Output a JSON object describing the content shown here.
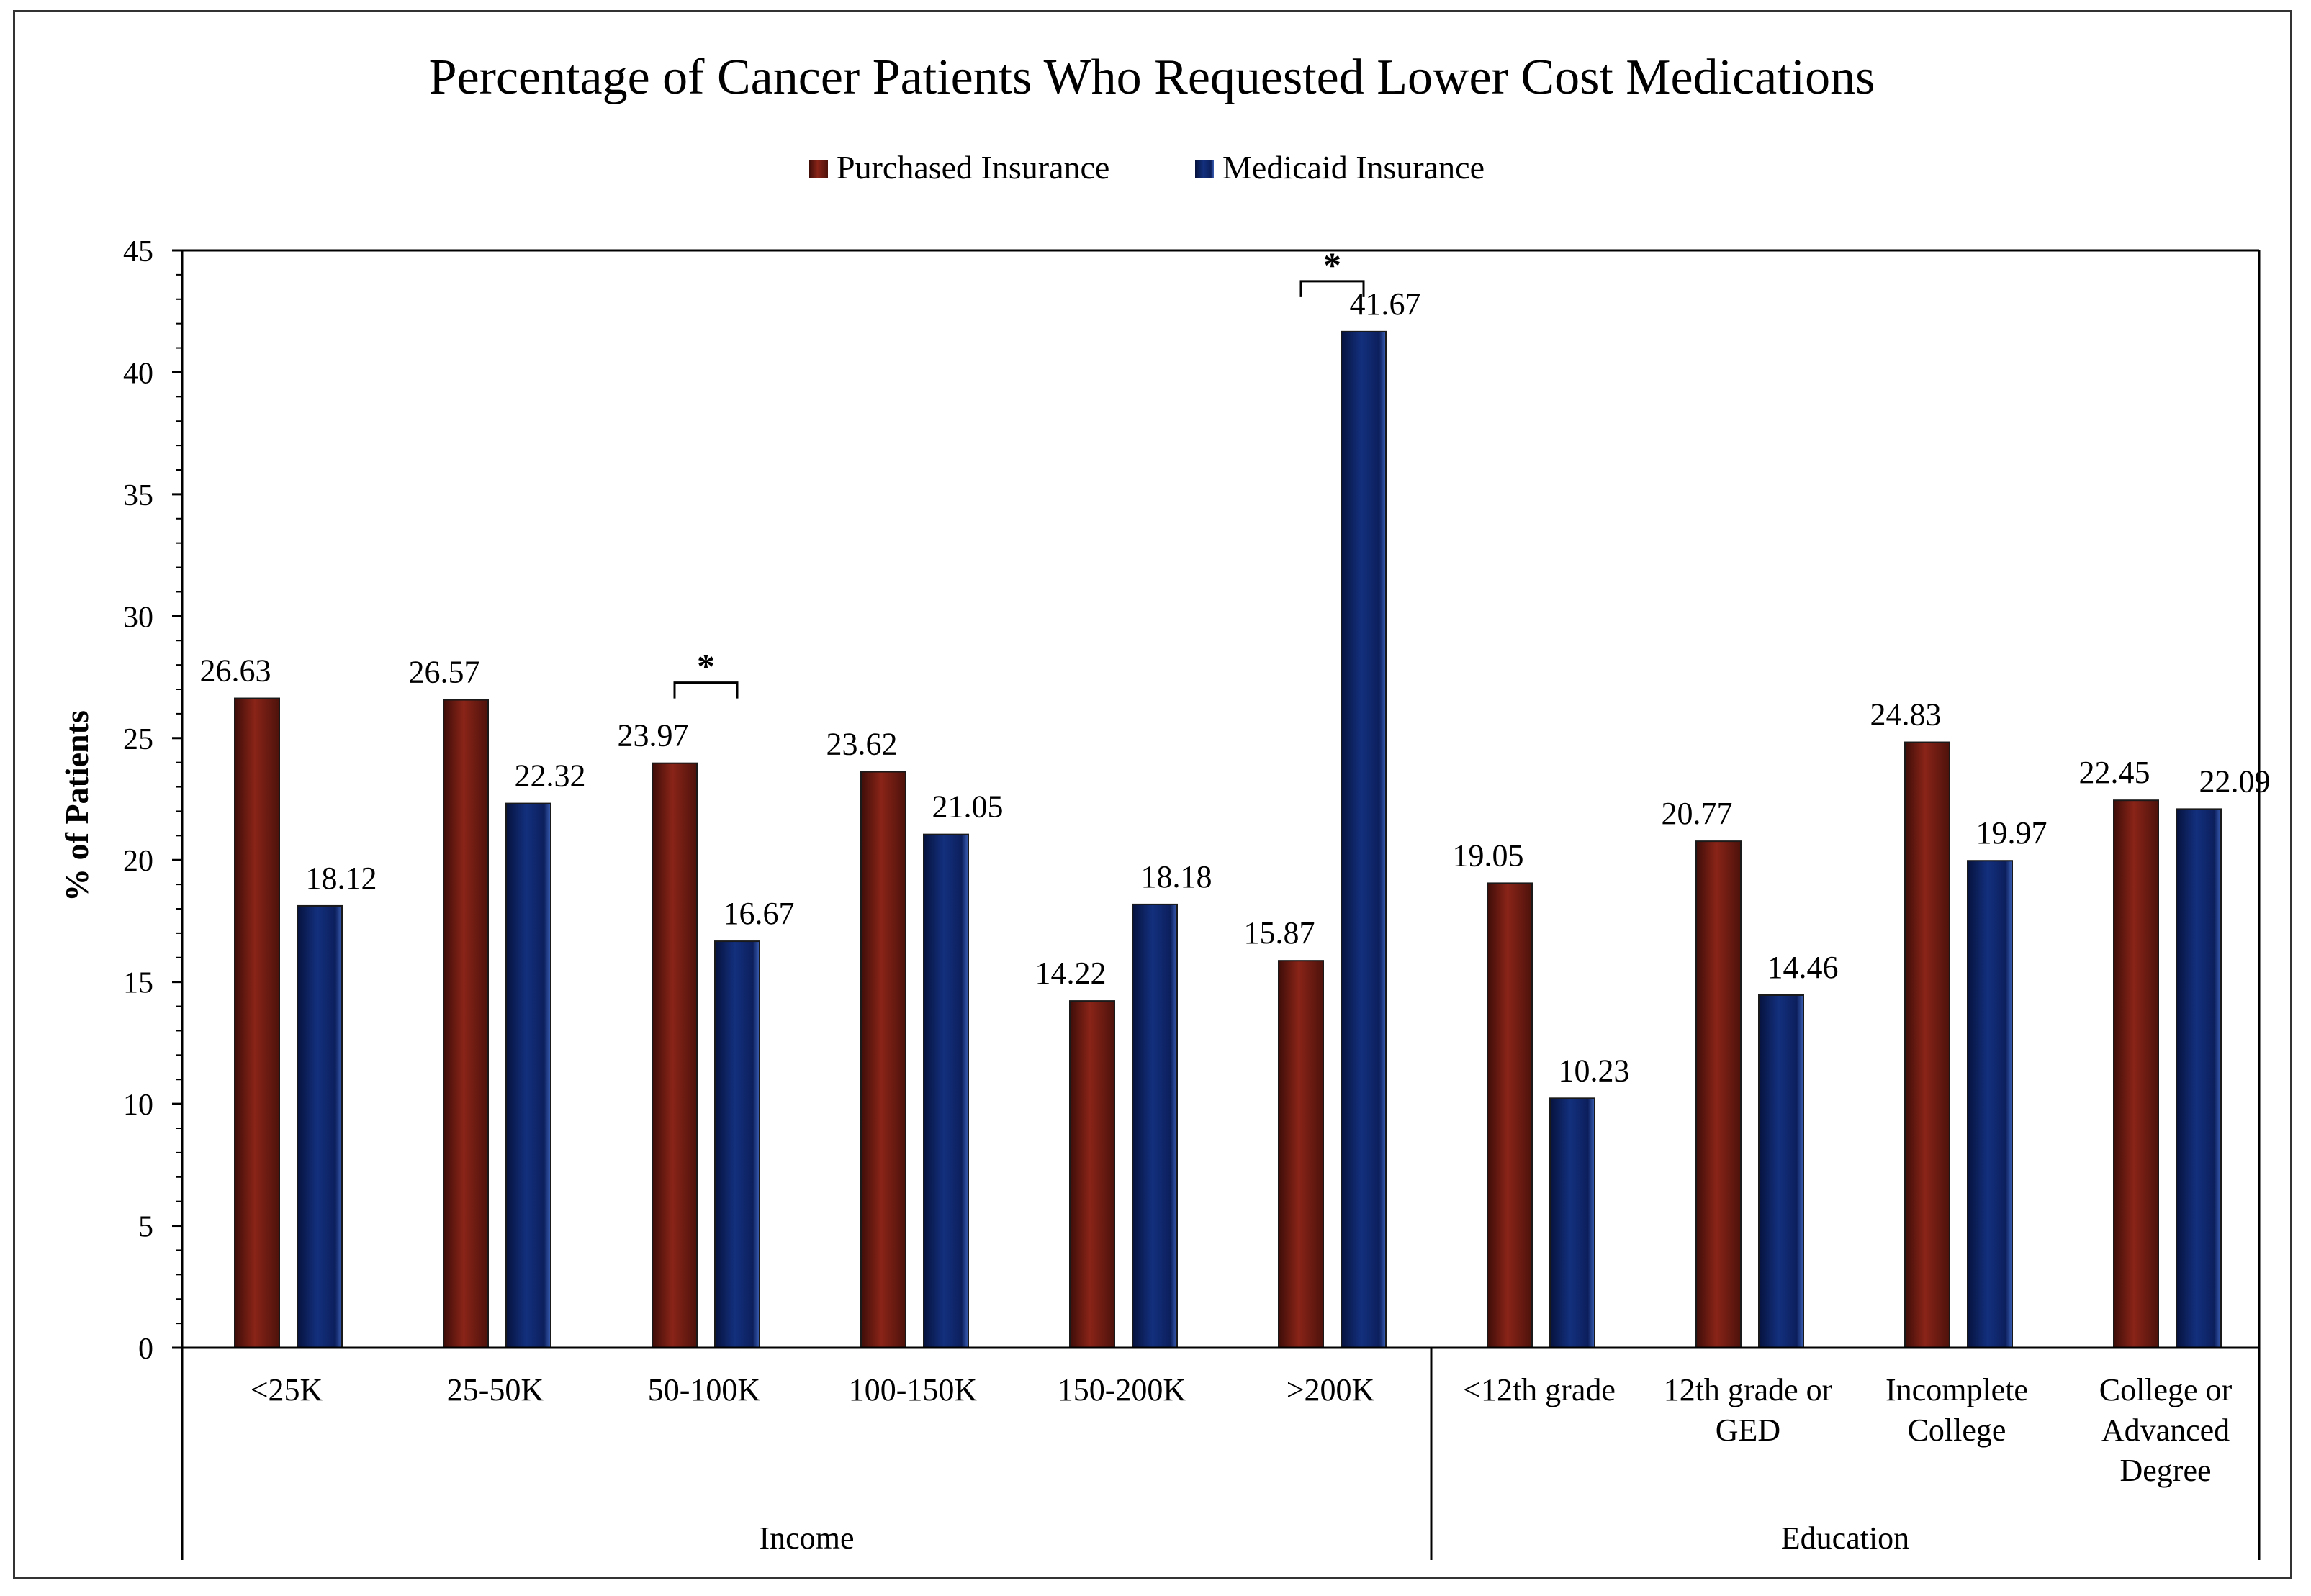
{
  "chart_data": {
    "type": "bar",
    "title": "Percentage of Cancer Patients Who Requested Lower Cost Medications",
    "ylabel": "% of Patients",
    "xlabel": "",
    "ylim": [
      0,
      45
    ],
    "yticks": [
      0,
      5,
      10,
      15,
      20,
      25,
      30,
      35,
      40,
      45
    ],
    "legend_position": "top-center",
    "grid": false,
    "categories": [
      [
        "<25K"
      ],
      [
        "25-50K"
      ],
      [
        "50-100K"
      ],
      [
        "100-150K"
      ],
      [
        "150-200K"
      ],
      [
        ">200K"
      ],
      [
        "<12th grade"
      ],
      [
        "12th grade or",
        "GED"
      ],
      [
        "Incomplete",
        "College"
      ],
      [
        "College or",
        "Advanced",
        "Degree"
      ]
    ],
    "groups": [
      {
        "label": "Income",
        "categories": 6
      },
      {
        "label": "Education",
        "categories": 4
      }
    ],
    "series": [
      {
        "name": "Purchased Insurance",
        "color": "#6b1a12",
        "values": [
          26.63,
          26.57,
          23.97,
          23.62,
          14.22,
          15.87,
          19.05,
          20.77,
          24.83,
          22.45
        ],
        "labels": [
          "26.63",
          "26.57",
          "23.97",
          "23.62",
          "14.22",
          "15.87",
          "19.05",
          "20.77",
          "24.83",
          "22.45"
        ]
      },
      {
        "name": "Medicaid Insurance",
        "color": "#0c1f5c",
        "values": [
          18.12,
          22.32,
          16.67,
          21.05,
          18.18,
          41.67,
          10.23,
          14.46,
          19.97,
          22.09
        ],
        "labels": [
          "18.12",
          "22.32",
          "16.67",
          "21.05",
          "18.18",
          "41.67",
          "10.23",
          "14.46",
          "19.97",
          "22.09"
        ]
      }
    ],
    "annotations": [
      {
        "text": "*",
        "category_index": 2,
        "type": "significance-bracket"
      },
      {
        "text": "*",
        "category_index": 5,
        "type": "significance-bracket"
      }
    ]
  }
}
